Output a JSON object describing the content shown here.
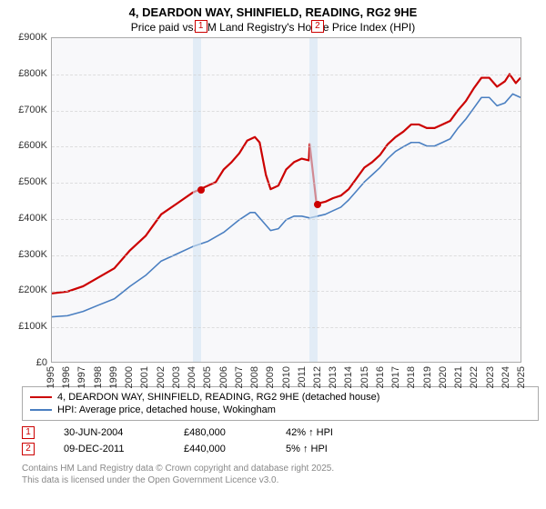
{
  "title": "4, DEARDON WAY, SHINFIELD, READING, RG2 9HE",
  "subtitle": "Price paid vs. HM Land Registry's House Price Index (HPI)",
  "chart": {
    "type": "line",
    "background_color": "#f8f8fa",
    "border_color": "#aaaaaa",
    "grid_color": "#cccccc",
    "xlim": [
      1995,
      2025
    ],
    "ylim": [
      0,
      900000
    ],
    "ytick_step": 100000,
    "ytick_labels": [
      "£0",
      "£100K",
      "£200K",
      "£300K",
      "£400K",
      "£500K",
      "£600K",
      "£700K",
      "£800K",
      "£900K"
    ],
    "xtick_step": 1,
    "xtick_labels": [
      "1995",
      "1996",
      "1997",
      "1998",
      "1999",
      "2000",
      "2001",
      "2002",
      "2003",
      "2004",
      "2005",
      "2006",
      "2007",
      "2008",
      "2009",
      "2010",
      "2011",
      "2012",
      "2013",
      "2014",
      "2015",
      "2016",
      "2017",
      "2018",
      "2019",
      "2020",
      "2021",
      "2022",
      "2023",
      "2024",
      "2025"
    ],
    "band_color": "#d3e4f4",
    "bands": [
      {
        "from": 2004.0,
        "to": 2004.5
      },
      {
        "from": 2011.45,
        "to": 2011.94
      }
    ],
    "series": [
      {
        "name": "property",
        "label": "4, DEARDON WAY, SHINFIELD, READING, RG2 9HE (detached house)",
        "color": "#cc0000",
        "line_width": 2.2,
        "points": [
          [
            1995,
            190000
          ],
          [
            1996,
            195000
          ],
          [
            1997,
            210000
          ],
          [
            1998,
            235000
          ],
          [
            1999,
            260000
          ],
          [
            2000,
            310000
          ],
          [
            2001,
            350000
          ],
          [
            2002,
            410000
          ],
          [
            2003,
            440000
          ],
          [
            2004,
            470000
          ],
          [
            2004.5,
            480000
          ],
          [
            2005,
            490000
          ],
          [
            2005.5,
            500000
          ],
          [
            2006,
            535000
          ],
          [
            2006.5,
            555000
          ],
          [
            2007,
            580000
          ],
          [
            2007.5,
            615000
          ],
          [
            2008,
            625000
          ],
          [
            2008.3,
            610000
          ],
          [
            2008.7,
            520000
          ],
          [
            2009,
            480000
          ],
          [
            2009.5,
            490000
          ],
          [
            2010,
            535000
          ],
          [
            2010.5,
            555000
          ],
          [
            2011,
            565000
          ],
          [
            2011.45,
            560000
          ],
          [
            2011.5,
            605000
          ],
          [
            2011.94,
            440000
          ],
          [
            2012,
            440000
          ],
          [
            2012.5,
            445000
          ],
          [
            2013,
            455000
          ],
          [
            2013.5,
            462000
          ],
          [
            2014,
            480000
          ],
          [
            2014.5,
            510000
          ],
          [
            2015,
            540000
          ],
          [
            2015.5,
            555000
          ],
          [
            2016,
            575000
          ],
          [
            2016.5,
            605000
          ],
          [
            2017,
            625000
          ],
          [
            2017.5,
            640000
          ],
          [
            2018,
            660000
          ],
          [
            2018.5,
            660000
          ],
          [
            2019,
            650000
          ],
          [
            2019.5,
            650000
          ],
          [
            2020,
            660000
          ],
          [
            2020.5,
            670000
          ],
          [
            2021,
            700000
          ],
          [
            2021.5,
            725000
          ],
          [
            2022,
            760000
          ],
          [
            2022.5,
            790000
          ],
          [
            2023,
            790000
          ],
          [
            2023.5,
            765000
          ],
          [
            2024,
            780000
          ],
          [
            2024.3,
            800000
          ],
          [
            2024.7,
            775000
          ],
          [
            2025,
            790000
          ]
        ]
      },
      {
        "name": "hpi",
        "label": "HPI: Average price, detached house, Wokingham",
        "color": "#4a7fc1",
        "line_width": 1.6,
        "points": [
          [
            1995,
            125000
          ],
          [
            1996,
            128000
          ],
          [
            1997,
            140000
          ],
          [
            1998,
            158000
          ],
          [
            1999,
            175000
          ],
          [
            2000,
            210000
          ],
          [
            2001,
            240000
          ],
          [
            2002,
            280000
          ],
          [
            2003,
            300000
          ],
          [
            2004,
            320000
          ],
          [
            2005,
            335000
          ],
          [
            2006,
            360000
          ],
          [
            2007,
            395000
          ],
          [
            2007.7,
            415000
          ],
          [
            2008,
            415000
          ],
          [
            2008.5,
            390000
          ],
          [
            2009,
            365000
          ],
          [
            2009.5,
            370000
          ],
          [
            2010,
            395000
          ],
          [
            2010.5,
            405000
          ],
          [
            2011,
            405000
          ],
          [
            2011.5,
            400000
          ],
          [
            2012,
            405000
          ],
          [
            2012.5,
            410000
          ],
          [
            2013,
            420000
          ],
          [
            2013.5,
            430000
          ],
          [
            2014,
            450000
          ],
          [
            2014.5,
            475000
          ],
          [
            2015,
            500000
          ],
          [
            2015.5,
            520000
          ],
          [
            2016,
            540000
          ],
          [
            2016.5,
            565000
          ],
          [
            2017,
            585000
          ],
          [
            2017.5,
            598000
          ],
          [
            2018,
            610000
          ],
          [
            2018.5,
            610000
          ],
          [
            2019,
            600000
          ],
          [
            2019.5,
            600000
          ],
          [
            2020,
            610000
          ],
          [
            2020.5,
            620000
          ],
          [
            2021,
            650000
          ],
          [
            2021.5,
            675000
          ],
          [
            2022,
            705000
          ],
          [
            2022.5,
            735000
          ],
          [
            2023,
            735000
          ],
          [
            2023.5,
            712000
          ],
          [
            2024,
            720000
          ],
          [
            2024.5,
            745000
          ],
          [
            2025,
            735000
          ]
        ]
      }
    ],
    "sale_markers": [
      {
        "n": "1",
        "x": 2004.5,
        "y": 480000,
        "box_color": "#cc0000"
      },
      {
        "n": "2",
        "x": 2011.94,
        "y": 440000,
        "box_color": "#cc0000"
      }
    ]
  },
  "legend": {
    "border_color": "#aaaaaa",
    "items": [
      {
        "color": "#cc0000",
        "label": "4, DEARDON WAY, SHINFIELD, READING, RG2 9HE (detached house)"
      },
      {
        "color": "#4a7fc1",
        "label": "HPI: Average price, detached house, Wokingham"
      }
    ]
  },
  "sales_table": {
    "rows": [
      {
        "n": "1",
        "box_color": "#cc0000",
        "date": "30-JUN-2004",
        "price": "£480,000",
        "delta": "42% ↑ HPI"
      },
      {
        "n": "2",
        "box_color": "#cc0000",
        "date": "09-DEC-2011",
        "price": "£440,000",
        "delta": "5% ↑ HPI"
      }
    ]
  },
  "footer": {
    "line1": "Contains HM Land Registry data © Crown copyright and database right 2025.",
    "line2": "This data is licensed under the Open Government Licence v3.0."
  }
}
